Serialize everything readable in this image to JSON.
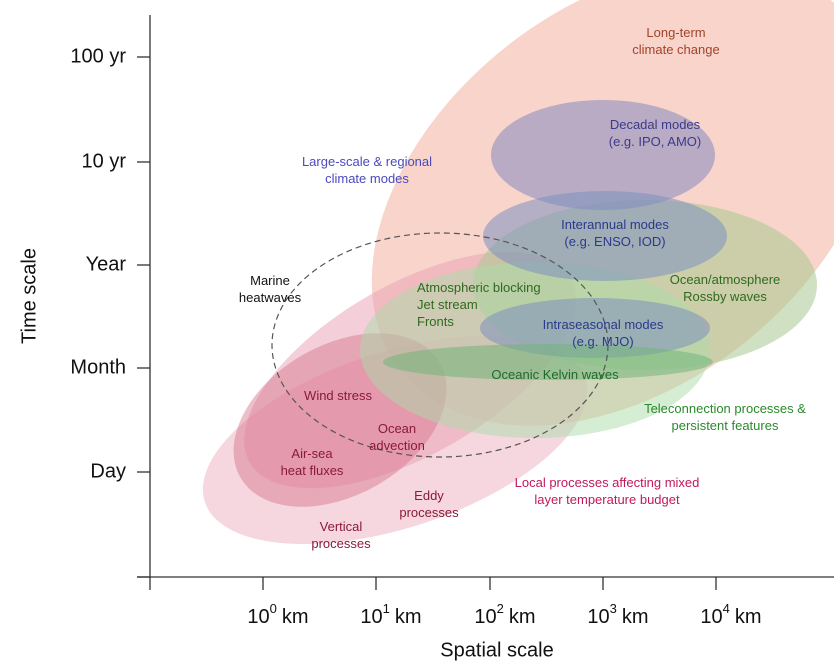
{
  "axes": {
    "y_label": "Time scale",
    "x_label": "Spatial scale",
    "y_ticks": [
      "100 yr",
      "10 yr",
      "Year",
      "Month",
      "Day"
    ],
    "x_ticks": [
      {
        "base": "10",
        "exp": "0",
        "unit": "km"
      },
      {
        "base": "10",
        "exp": "1",
        "unit": "km"
      },
      {
        "base": "10",
        "exp": "2",
        "unit": "km"
      },
      {
        "base": "10",
        "exp": "3",
        "unit": "km"
      },
      {
        "base": "10",
        "exp": "4",
        "unit": "km"
      }
    ]
  },
  "regions": [
    {
      "lines": [
        "Long-term",
        "climate change"
      ]
    },
    {
      "lines": [
        "Decadal modes",
        "(e.g. IPO, AMO)"
      ]
    },
    {
      "lines": [
        "Large-scale & regional",
        "climate modes"
      ]
    },
    {
      "lines": [
        "Interannual modes",
        "(e.g. ENSO, IOD)"
      ]
    },
    {
      "lines": [
        "Ocean/atmosphere",
        "Rossby waves"
      ]
    },
    {
      "lines": [
        "Marine",
        "heatwaves"
      ]
    },
    {
      "lines": [
        "Atmospheric blocking",
        "Jet stream",
        "Fronts"
      ]
    },
    {
      "lines": [
        "Intraseasonal modes",
        "(e.g. MJO)"
      ]
    },
    {
      "lines": [
        "Oceanic Kelvin waves"
      ]
    },
    {
      "lines": [
        "Teleconnection processes &",
        "persistent features"
      ]
    },
    {
      "lines": [
        "Wind stress"
      ]
    },
    {
      "lines": [
        "Ocean",
        "advection"
      ]
    },
    {
      "lines": [
        "Air-sea",
        "heat fluxes"
      ]
    },
    {
      "lines": [
        "Local processes affecting mixed",
        "layer temperature budget"
      ]
    },
    {
      "lines": [
        "Eddy",
        "processes"
      ]
    },
    {
      "lines": [
        "Vertical",
        "processes"
      ]
    }
  ]
}
